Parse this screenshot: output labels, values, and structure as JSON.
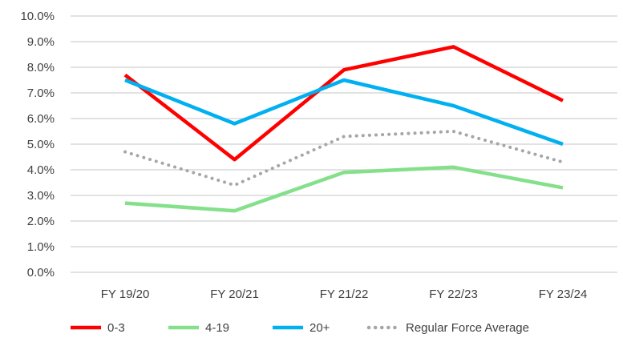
{
  "chart_data": {
    "type": "line",
    "categories": [
      "FY 19/20",
      "FY 20/21",
      "FY 21/22",
      "FY 22/23",
      "FY 23/24"
    ],
    "ylim": [
      0,
      10
    ],
    "yticks": [
      "0.0%",
      "1.0%",
      "2.0%",
      "3.0%",
      "4.0%",
      "5.0%",
      "6.0%",
      "7.0%",
      "8.0%",
      "9.0%",
      "10.0%"
    ],
    "grid": true,
    "legend_placement": "bottom",
    "series": [
      {
        "name": "0-3",
        "color": "#FF0000",
        "dash": false,
        "values": [
          7.7,
          4.4,
          7.9,
          8.8,
          6.7
        ]
      },
      {
        "name": "4-19",
        "color": "#84E08A",
        "dash": false,
        "values": [
          2.7,
          2.4,
          3.9,
          4.1,
          3.3
        ]
      },
      {
        "name": "20+",
        "color": "#00B0F0",
        "dash": false,
        "values": [
          7.5,
          5.8,
          7.5,
          6.5,
          5.0
        ]
      },
      {
        "name": "Regular Force Average",
        "color": "#A6A6A6",
        "dash": true,
        "values": [
          4.7,
          3.4,
          5.3,
          5.5,
          4.3
        ]
      }
    ]
  }
}
